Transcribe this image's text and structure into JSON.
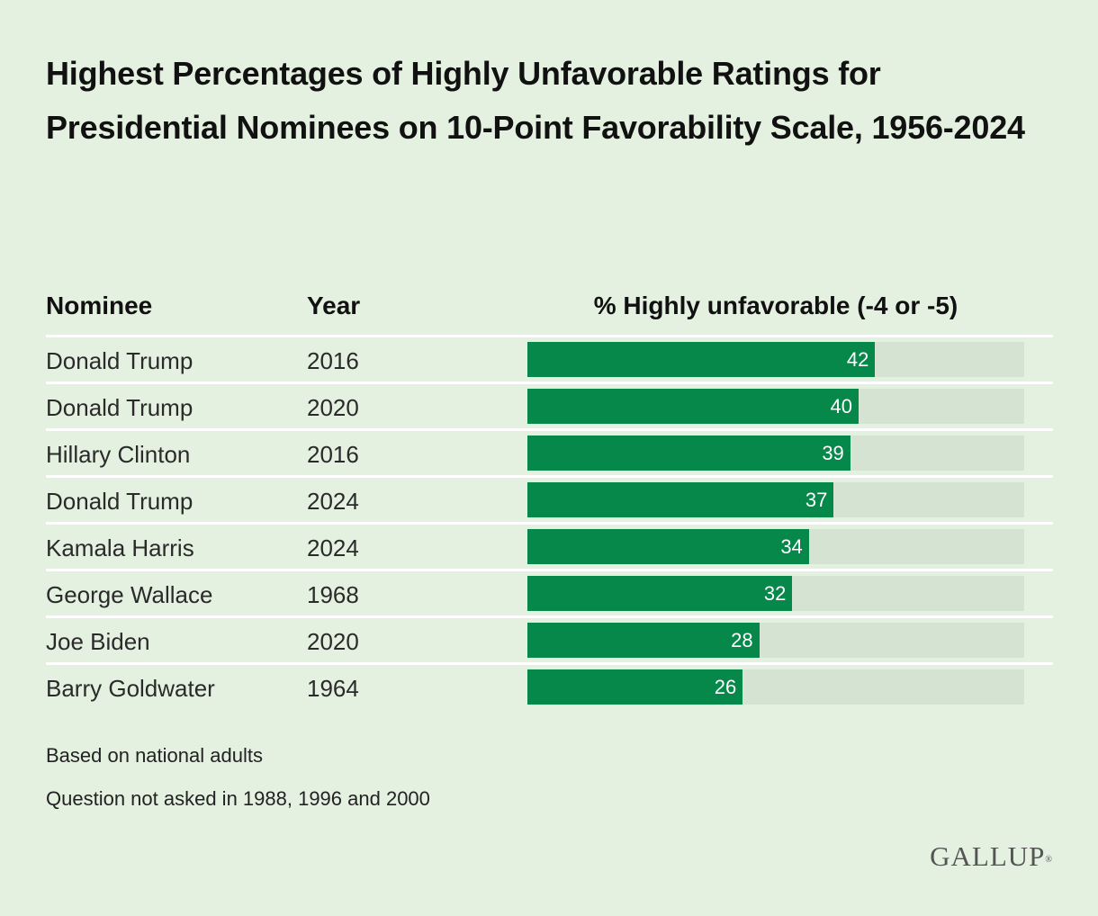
{
  "chart_data": {
    "type": "bar",
    "orientation": "horizontal",
    "title": "Highest Percentages of Highly Unfavorable Ratings for Presidential Nominees on 10-Point Favorability Scale, 1956-2024",
    "columns": {
      "nominee": "Nominee",
      "year": "Year",
      "value": "% Highly unfavorable (-4 or -5)"
    },
    "rows": [
      {
        "nominee": "Donald Trump",
        "year": "2016",
        "value": 42
      },
      {
        "nominee": "Donald Trump",
        "year": "2020",
        "value": 40
      },
      {
        "nominee": "Hillary Clinton",
        "year": "2016",
        "value": 39
      },
      {
        "nominee": "Donald Trump",
        "year": "2024",
        "value": 37
      },
      {
        "nominee": "Kamala Harris",
        "year": "2024",
        "value": 34
      },
      {
        "nominee": "George Wallace",
        "year": "1968",
        "value": 32
      },
      {
        "nominee": "Joe Biden",
        "year": "2020",
        "value": 28
      },
      {
        "nominee": "Barry Goldwater",
        "year": "1964",
        "value": 26
      }
    ],
    "xlim": [
      0,
      60
    ],
    "bar_color": "#06884a",
    "track_color": "#d5e3d2",
    "notes": [
      "Based on national adults",
      "Question not asked in 1988, 1996 and 2000"
    ]
  },
  "branding": {
    "logo_text": "GALLUP",
    "logo_mark": "®"
  }
}
